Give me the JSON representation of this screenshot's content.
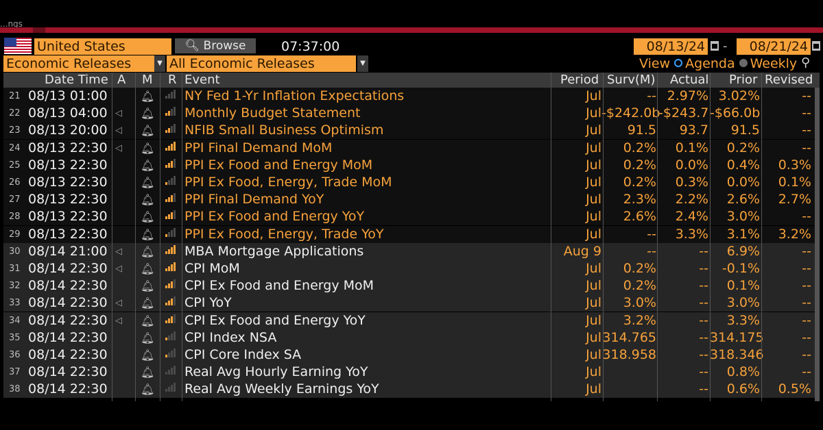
{
  "header": {
    "top_fragment": "...ngs",
    "country": "United States",
    "browse_label": "Browse",
    "time": "07:37:00",
    "date_from": "08/13/24",
    "date_to": "08/21/24",
    "date_sep": "-",
    "filter1": "Economic Releases",
    "filter2": "All Economic Releases",
    "view_label": "View",
    "view_agenda": "Agenda",
    "view_weekly": "Weekly"
  },
  "columns": {
    "datetime": "Date Time",
    "a": "A",
    "m": "M",
    "r": "R",
    "event": "Event",
    "period": "Period",
    "survey": "Surv(M)",
    "actual": "Actual",
    "prior": "Prior",
    "revised": "Revised"
  },
  "colors": {
    "accent": "#f7a23b",
    "header_bg": "#3a3a3a",
    "red": "#a0142a"
  },
  "rows": [
    {
      "num": "21",
      "datetime": "08/13 01:00",
      "alarm": "",
      "event": "NY Fed 1-Yr Inflation Expectations",
      "event_color": "orange",
      "relevance": 0,
      "period": "Jul",
      "survey": "--",
      "actual": "2.97%",
      "prior": "3.02%",
      "revised": "--",
      "shade": "dark"
    },
    {
      "num": "22",
      "datetime": "08/13 04:00",
      "alarm": "◁",
      "event": "Monthly Budget Statement",
      "event_color": "orange",
      "relevance": 2,
      "period": "Jul",
      "survey": "-$242.0b",
      "actual": "-$243.7",
      "prior": "-$66.0b",
      "revised": "--",
      "shade": "dark"
    },
    {
      "num": "23",
      "datetime": "08/13 20:00",
      "alarm": "◁",
      "event": "NFIB Small Business Optimism",
      "event_color": "orange",
      "relevance": 2,
      "period": "Jul",
      "survey": "91.5",
      "actual": "93.7",
      "prior": "91.5",
      "revised": "--",
      "shade": "dark"
    },
    {
      "num": "24",
      "datetime": "08/13 22:30",
      "alarm": "◁",
      "event": "PPI Final Demand MoM",
      "event_color": "orange",
      "relevance": 4,
      "period": "Jul",
      "survey": "0.2%",
      "actual": "0.1%",
      "prior": "0.2%",
      "revised": "--",
      "shade": "dark"
    },
    {
      "num": "25",
      "datetime": "08/13 22:30",
      "alarm": "",
      "event": "PPI Ex Food and Energy MoM",
      "event_color": "orange",
      "relevance": 3,
      "period": "Jul",
      "survey": "0.2%",
      "actual": "0.0%",
      "prior": "0.4%",
      "revised": "0.3%",
      "shade": "dark"
    },
    {
      "num": "26",
      "datetime": "08/13 22:30",
      "alarm": "",
      "event": "PPI Ex Food, Energy, Trade MoM",
      "event_color": "orange",
      "relevance": 1,
      "period": "Jul",
      "survey": "0.2%",
      "actual": "0.3%",
      "prior": "0.0%",
      "revised": "0.1%",
      "shade": "dark"
    },
    {
      "num": "27",
      "datetime": "08/13 22:30",
      "alarm": "",
      "event": "PPI Final Demand YoY",
      "event_color": "orange",
      "relevance": 3,
      "period": "Jul",
      "survey": "2.3%",
      "actual": "2.2%",
      "prior": "2.6%",
      "revised": "2.7%",
      "shade": "dark"
    },
    {
      "num": "28",
      "datetime": "08/13 22:30",
      "alarm": "",
      "event": "PPI Ex Food and Energy YoY",
      "event_color": "orange",
      "relevance": 3,
      "period": "Jul",
      "survey": "2.6%",
      "actual": "2.4%",
      "prior": "3.0%",
      "revised": "--",
      "shade": "dark"
    },
    {
      "num": "29",
      "datetime": "08/13 22:30",
      "alarm": "",
      "event": "PPI Ex Food, Energy, Trade YoY",
      "event_color": "orange",
      "relevance": 1,
      "period": "Jul",
      "survey": "--",
      "actual": "3.3%",
      "prior": "3.1%",
      "revised": "3.2%",
      "shade": "dark"
    },
    {
      "num": "30",
      "datetime": "08/14 21:00",
      "alarm": "◁",
      "event": "MBA Mortgage Applications",
      "event_color": "white",
      "relevance": 4,
      "period": "Aug 9",
      "survey": "--",
      "actual": "--",
      "prior": "6.9%",
      "revised": "--",
      "shade": "light"
    },
    {
      "num": "31",
      "datetime": "08/14 22:30",
      "alarm": "◁",
      "event": "CPI MoM",
      "event_color": "white",
      "relevance": 4,
      "period": "Jul",
      "survey": "0.2%",
      "actual": "--",
      "prior": "-0.1%",
      "revised": "--",
      "shade": "light"
    },
    {
      "num": "32",
      "datetime": "08/14 22:30",
      "alarm": "",
      "event": "CPI Ex Food and Energy MoM",
      "event_color": "white",
      "relevance": 3,
      "period": "Jul",
      "survey": "0.2%",
      "actual": "--",
      "prior": "0.1%",
      "revised": "--",
      "shade": "light"
    },
    {
      "num": "33",
      "datetime": "08/14 22:30",
      "alarm": "◁",
      "event": "CPI YoY",
      "event_color": "white",
      "relevance": 3,
      "period": "Jul",
      "survey": "3.0%",
      "actual": "--",
      "prior": "3.0%",
      "revised": "--",
      "shade": "light"
    },
    {
      "num": "34",
      "datetime": "08/14 22:30",
      "alarm": "◁",
      "event": "CPI Ex Food and Energy YoY",
      "event_color": "white",
      "relevance": 3,
      "period": "Jul",
      "survey": "3.2%",
      "actual": "--",
      "prior": "3.3%",
      "revised": "--",
      "shade": "light"
    },
    {
      "num": "35",
      "datetime": "08/14 22:30",
      "alarm": "",
      "event": "CPI Index NSA",
      "event_color": "white",
      "relevance": 1,
      "period": "Jul",
      "survey": "314.765",
      "actual": "--",
      "prior": "314.175",
      "revised": "--",
      "shade": "light"
    },
    {
      "num": "36",
      "datetime": "08/14 22:30",
      "alarm": "",
      "event": "CPI Core Index SA",
      "event_color": "white",
      "relevance": 1,
      "period": "Jul",
      "survey": "318.958",
      "actual": "--",
      "prior": "318.346",
      "revised": "--",
      "shade": "light"
    },
    {
      "num": "37",
      "datetime": "08/14 22:30",
      "alarm": "",
      "event": "Real Avg Hourly Earning YoY",
      "event_color": "white",
      "relevance": 0,
      "period": "Jul",
      "survey": "",
      "actual": "--",
      "prior": "0.8%",
      "revised": "--",
      "shade": "light"
    },
    {
      "num": "38",
      "datetime": "08/14 22:30",
      "alarm": "",
      "event": "Real Avg Weekly Earnings YoY",
      "event_color": "white",
      "relevance": 0,
      "period": "Jul",
      "survey": "",
      "actual": "--",
      "prior": "0.6%",
      "revised": "0.5%",
      "shade": "light"
    }
  ]
}
